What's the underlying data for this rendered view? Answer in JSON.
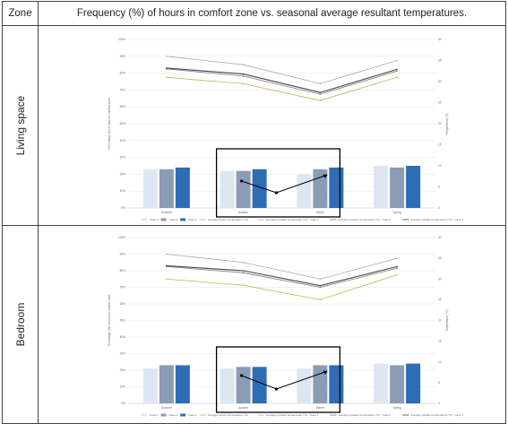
{
  "table": {
    "header_zone": "Zone",
    "header_title": "Frequency (%) of hours in comfort zone vs. seasonal average resultant temperatures."
  },
  "chart_data": [
    {
      "zone": "Living space",
      "type": "bar",
      "categories": [
        "Summer",
        "Autumn",
        "Winter",
        "Spring"
      ],
      "ylabel": "Percentage (%) of hours in comfort zone",
      "y2label": "Temperature (°C)",
      "ylim": [
        0,
        100
      ],
      "y2lim": [
        0,
        40
      ],
      "yticks": [
        "0%",
        "10%",
        "20%",
        "30%",
        "40%",
        "50%",
        "60%",
        "70%",
        "80%",
        "90%",
        "100%"
      ],
      "y2ticks": [
        "0",
        "5",
        "10",
        "15",
        "20",
        "25",
        "30",
        "35",
        "40"
      ],
      "series": [
        {
          "name": "Case 1",
          "kind": "bar",
          "color": "#dde7f3",
          "values": [
            23,
            22,
            20,
            25
          ]
        },
        {
          "name": "Case 2",
          "kind": "bar",
          "color": "#8c9cb6",
          "values": [
            23,
            22,
            23,
            24
          ]
        },
        {
          "name": "Case 3",
          "kind": "bar",
          "color": "#2e6db4",
          "values": [
            24,
            23,
            24,
            25
          ]
        },
        {
          "name": "Average exterior temperature (°C)",
          "kind": "line",
          "axis": "right",
          "color": "#c9b24a",
          "values": [
            31,
            29.5,
            25.5,
            31
          ]
        },
        {
          "name": "Average resultant temperature (°C) - Case 1",
          "kind": "line",
          "axis": "right",
          "color": "#aaaaaa",
          "values": [
            36,
            34,
            29.5,
            35
          ]
        },
        {
          "name": "Average resultant temperature (°C) - Case 2",
          "kind": "line",
          "axis": "right",
          "color": "#777777",
          "values": [
            33,
            31.3,
            27,
            32.5
          ]
        },
        {
          "name": "Average resultant temperature (°C) - Case 3",
          "kind": "line",
          "axis": "right",
          "color": "#444444",
          "values": [
            33.2,
            31.8,
            27.4,
            32.9
          ]
        }
      ],
      "legend_position": "bottom",
      "grid": true
    },
    {
      "zone": "Bedroom",
      "type": "bar",
      "categories": [
        "Summer",
        "Autumn",
        "Winter",
        "Spring"
      ],
      "ylabel": "Percentage (%) of hours in comfort zone",
      "y2label": "Temperature (°C)",
      "ylim": [
        0,
        100
      ],
      "y2lim": [
        0,
        40
      ],
      "yticks": [
        "0%",
        "10%",
        "20%",
        "30%",
        "40%",
        "50%",
        "60%",
        "70%",
        "80%",
        "90%",
        "100%"
      ],
      "y2ticks": [
        "0",
        "5",
        "10",
        "15",
        "20",
        "25",
        "30",
        "35",
        "40"
      ],
      "series": [
        {
          "name": "Case 1",
          "kind": "bar",
          "color": "#dde7f3",
          "values": [
            21,
            21,
            21,
            24
          ]
        },
        {
          "name": "Case 2",
          "kind": "bar",
          "color": "#8c9cb6",
          "values": [
            23,
            22,
            23,
            23
          ]
        },
        {
          "name": "Case 3",
          "kind": "bar",
          "color": "#2e6db4",
          "values": [
            23,
            22,
            23,
            24
          ]
        },
        {
          "name": "Average exterior temperature (°C)",
          "kind": "line",
          "axis": "right",
          "color": "#c9b24a",
          "values": [
            30,
            28.5,
            25,
            31
          ]
        },
        {
          "name": "Average resultant temperature (°C) - Case 1",
          "kind": "line",
          "axis": "right",
          "color": "#aaaaaa",
          "values": [
            36,
            34,
            30,
            35
          ]
        },
        {
          "name": "Average resultant temperature (°C) - Case 2",
          "kind": "line",
          "axis": "right",
          "color": "#777777",
          "values": [
            33,
            31.5,
            28,
            32.6
          ]
        },
        {
          "name": "Average resultant temperature (°C) - Case 3",
          "kind": "line",
          "axis": "right",
          "color": "#444444",
          "values": [
            33.2,
            32,
            28.4,
            33
          ]
        }
      ],
      "legend_position": "bottom",
      "grid": true
    }
  ]
}
